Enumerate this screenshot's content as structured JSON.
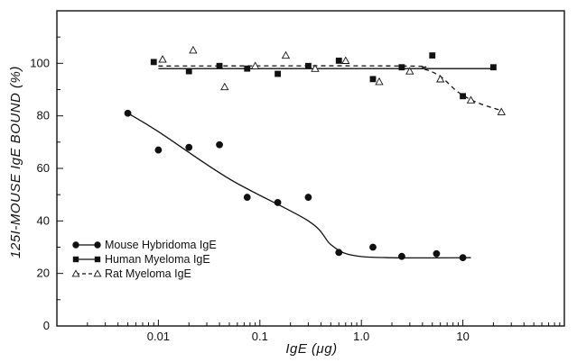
{
  "chart_data": {
    "type": "scatter",
    "xscale": "log",
    "xlabel": "IgE (μg)",
    "ylabel": "125I-MOUSE IgE BOUND (%)",
    "xlim": [
      0.001,
      100
    ],
    "ylim": [
      0,
      120
    ],
    "x_tick_values": [
      0.01,
      0.1,
      1,
      10
    ],
    "x_tick_labels": [
      "0.01",
      "0.1",
      "1.0",
      "10"
    ],
    "y_tick_values": [
      0,
      20,
      40,
      60,
      80,
      100
    ],
    "y_tick_labels": [
      "0",
      "20",
      "40",
      "60",
      "80",
      "100"
    ],
    "grid": false,
    "legend_position": "bottom-left",
    "series": [
      {
        "name": "Mouse Hybridoma IgE",
        "marker": "filled-circle",
        "line": "solid",
        "color": "#111111",
        "points": [
          {
            "x": 0.005,
            "y": 81
          },
          {
            "x": 0.01,
            "y": 67
          },
          {
            "x": 0.02,
            "y": 68
          },
          {
            "x": 0.04,
            "y": 69
          },
          {
            "x": 0.075,
            "y": 49
          },
          {
            "x": 0.15,
            "y": 47
          },
          {
            "x": 0.3,
            "y": 49
          },
          {
            "x": 0.6,
            "y": 28
          },
          {
            "x": 1.3,
            "y": 30
          },
          {
            "x": 2.5,
            "y": 26.5
          },
          {
            "x": 5.5,
            "y": 27.5
          },
          {
            "x": 10,
            "y": 26
          }
        ],
        "fit": [
          {
            "x": 0.005,
            "y": 81
          },
          {
            "x": 0.01,
            "y": 74
          },
          {
            "x": 0.05,
            "y": 56
          },
          {
            "x": 0.3,
            "y": 40
          },
          {
            "x": 0.5,
            "y": 31
          },
          {
            "x": 0.8,
            "y": 27
          },
          {
            "x": 2,
            "y": 26
          },
          {
            "x": 12,
            "y": 26
          }
        ]
      },
      {
        "name": "Human Myeloma IgE",
        "marker": "filled-square",
        "line": "solid",
        "color": "#111111",
        "points": [
          {
            "x": 0.009,
            "y": 100.5
          },
          {
            "x": 0.02,
            "y": 97
          },
          {
            "x": 0.04,
            "y": 99
          },
          {
            "x": 0.075,
            "y": 98
          },
          {
            "x": 0.15,
            "y": 96
          },
          {
            "x": 0.3,
            "y": 99
          },
          {
            "x": 0.6,
            "y": 101
          },
          {
            "x": 1.3,
            "y": 94
          },
          {
            "x": 2.5,
            "y": 98.5
          },
          {
            "x": 5,
            "y": 103
          },
          {
            "x": 10,
            "y": 87.5
          },
          {
            "x": 20,
            "y": 98.5
          }
        ],
        "fit": [
          {
            "x": 0.01,
            "y": 98
          },
          {
            "x": 20,
            "y": 98
          }
        ]
      },
      {
        "name": "Rat Myeloma IgE",
        "marker": "open-triangle",
        "line": "dashed",
        "color": "#111111",
        "points": [
          {
            "x": 0.011,
            "y": 101.5
          },
          {
            "x": 0.022,
            "y": 105
          },
          {
            "x": 0.045,
            "y": 91
          },
          {
            "x": 0.09,
            "y": 99
          },
          {
            "x": 0.18,
            "y": 103
          },
          {
            "x": 0.35,
            "y": 98
          },
          {
            "x": 0.7,
            "y": 101
          },
          {
            "x": 1.5,
            "y": 93
          },
          {
            "x": 3,
            "y": 97
          },
          {
            "x": 6,
            "y": 94
          },
          {
            "x": 12,
            "y": 86
          },
          {
            "x": 24,
            "y": 81.5
          }
        ],
        "fit": [
          {
            "x": 0.01,
            "y": 99
          },
          {
            "x": 2.5,
            "y": 99
          },
          {
            "x": 4,
            "y": 98
          },
          {
            "x": 6,
            "y": 95
          },
          {
            "x": 9,
            "y": 89
          },
          {
            "x": 14,
            "y": 85
          },
          {
            "x": 24,
            "y": 82
          }
        ]
      }
    ],
    "legend": [
      {
        "label": "Mouse Hybridoma IgE",
        "marker": "filled-circle",
        "line": "solid"
      },
      {
        "label": "Human Myeloma IgE",
        "marker": "filled-square",
        "line": "solid"
      },
      {
        "label": "Rat Myeloma IgE",
        "marker": "open-triangle",
        "line": "dashed"
      }
    ]
  }
}
